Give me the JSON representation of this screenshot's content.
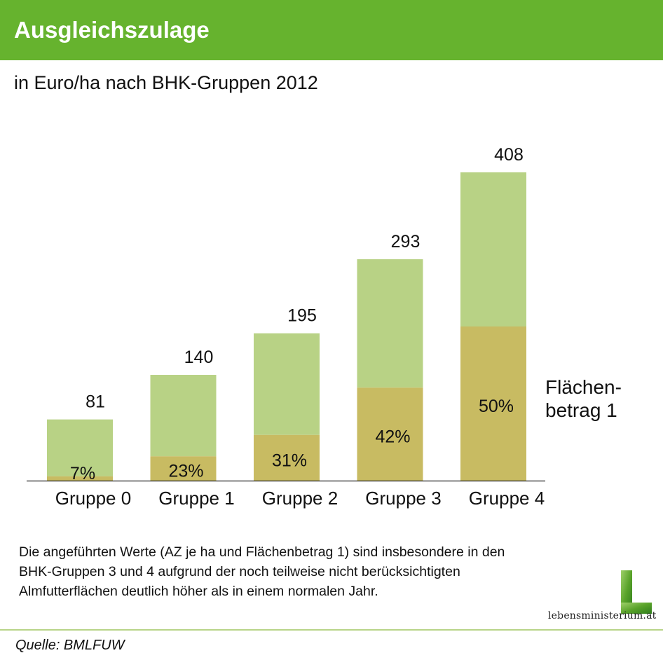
{
  "header": {
    "title": "Ausgleichszulage"
  },
  "subtitle": "in Euro/ha nach BHK-Gruppen 2012",
  "chart_data": {
    "type": "bar",
    "stacked": true,
    "categories": [
      "Gruppe 0",
      "Gruppe 1",
      "Gruppe 2",
      "Gruppe 3",
      "Gruppe 4"
    ],
    "totals": [
      81,
      140,
      195,
      293,
      408
    ],
    "series": [
      {
        "name": "Flächenbetrag 1",
        "percent_of_total": [
          7,
          23,
          31,
          42,
          50
        ],
        "percent_labels": [
          "7%",
          "23%",
          "31%",
          "42%",
          "50%"
        ],
        "color": "#c8bb62"
      },
      {
        "values": [
          75.3,
          107.8,
          134.6,
          169.9,
          204
        ],
        "color": "#b8d285"
      }
    ],
    "ylim": [
      0,
      408
    ],
    "grid": false,
    "legend": "right"
  },
  "legend": {
    "lines": [
      "Flächen-",
      "betrag 1"
    ]
  },
  "note": {
    "lines": [
      "Die angeführten Werte (AZ je ha und Flächenbetrag 1) sind insbesondere in den",
      "BHK-Gruppen 3 und 4 aufgrund der noch teilweise nicht berücksichtigten",
      "Almfutterflächen deutlich höher als in einem normalen Jahr."
    ]
  },
  "logo": {
    "text": "lebensministerium.at"
  },
  "source": "Quelle: BMLFUW",
  "colors": {
    "header": "#66b32e",
    "bar_light": "#b8d285",
    "bar_dark": "#c8bb62"
  }
}
